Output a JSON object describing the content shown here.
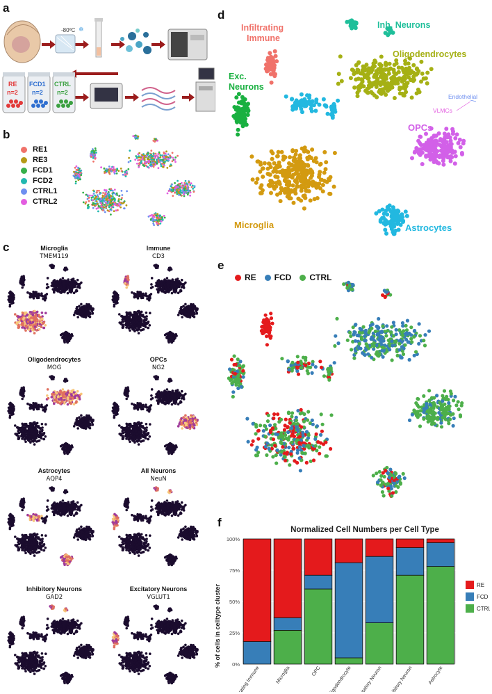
{
  "panels": {
    "a": "a",
    "b": "b",
    "c": "c",
    "d": "d",
    "e": "e",
    "f": "f"
  },
  "panel_a": {
    "temp_label": "-80ºC",
    "tubes": [
      {
        "name": "RE",
        "n": "n=2",
        "color": "#e23a3a"
      },
      {
        "name": "FCD1",
        "n": "n=2",
        "color": "#2f6fd0"
      },
      {
        "name": "CTRL",
        "n": "n=2",
        "color": "#3aa040"
      }
    ]
  },
  "panel_b": {
    "legend": [
      {
        "label": "RE1",
        "color": "#f0726a"
      },
      {
        "label": "RE3",
        "color": "#b59a16"
      },
      {
        "label": "FCD1",
        "color": "#36b04a"
      },
      {
        "label": "FCD2",
        "color": "#22b8b0"
      },
      {
        "label": "CTRL1",
        "color": "#6e8ff0"
      },
      {
        "label": "CTRL2",
        "color": "#e35de0"
      }
    ]
  },
  "panel_c": {
    "maps": [
      {
        "title": "Microglia",
        "gene": "TMEM119"
      },
      {
        "title": "Immune",
        "gene": "CD3"
      },
      {
        "title": "Oligodendrocytes",
        "gene": "MOG"
      },
      {
        "title": "OPCs",
        "gene": "NG2"
      },
      {
        "title": "Astrocytes",
        "gene": "AQP4"
      },
      {
        "title": "All Neurons",
        "gene": "NeuN"
      },
      {
        "title": "Inhibitory Neurons",
        "gene": "GAD2"
      },
      {
        "title": "Excitatory Neurons",
        "gene": "VGLUT1"
      }
    ]
  },
  "panel_d": {
    "labels": [
      {
        "text": "Infiltrating",
        "color": "#f0726a"
      },
      {
        "text": "Immune",
        "color": "#f0726a"
      },
      {
        "text": "Inh. Neurons",
        "color": "#1fbf9a"
      },
      {
        "text": "Oligodendrocytes",
        "color": "#a5b014"
      },
      {
        "text": "Exc.",
        "color": "#19b040"
      },
      {
        "text": "Neurons",
        "color": "#19b040"
      },
      {
        "text": "Endothelial",
        "color": "#6e8ff0"
      },
      {
        "text": "VLMCs",
        "color": "#e35de0"
      },
      {
        "text": "OPCs",
        "color": "#d260e8"
      },
      {
        "text": "Microglia",
        "color": "#d39a10"
      },
      {
        "text": "Astrocytes",
        "color": "#22b8e0"
      }
    ]
  },
  "panel_e": {
    "legend": [
      {
        "label": "RE",
        "color": "#e41a1c"
      },
      {
        "label": "FCD",
        "color": "#377eb8"
      },
      {
        "label": "CTRL",
        "color": "#4daf4a"
      }
    ]
  },
  "chart_data": {
    "type": "bar",
    "stacked": true,
    "title": "Normalized Cell Numbers per Cell Type",
    "ylabel": "% of cells in celltype cluster",
    "xlabel": "",
    "ylim": [
      0,
      100
    ],
    "yticks": [
      "0%",
      "25%",
      "50%",
      "75%",
      "100%"
    ],
    "categories": [
      "Infiltrating Immune",
      "Microglia",
      "OPC",
      "Oligodendrocyte",
      "Excitatory Neuron",
      "Inhibitory Neuron",
      "Astrocyte"
    ],
    "series": [
      {
        "name": "CTRL",
        "color": "#4daf4a",
        "values": [
          0,
          27,
          60,
          5,
          33,
          71,
          78
        ]
      },
      {
        "name": "FCD",
        "color": "#377eb8",
        "values": [
          18,
          10,
          11,
          76,
          53,
          22,
          19
        ]
      },
      {
        "name": "RE",
        "color": "#e41a1c",
        "values": [
          82,
          63,
          29,
          19,
          14,
          7,
          3
        ]
      }
    ],
    "legend_order": [
      "RE",
      "FCD",
      "CTRL"
    ],
    "legend_position": "right",
    "grid": true
  }
}
